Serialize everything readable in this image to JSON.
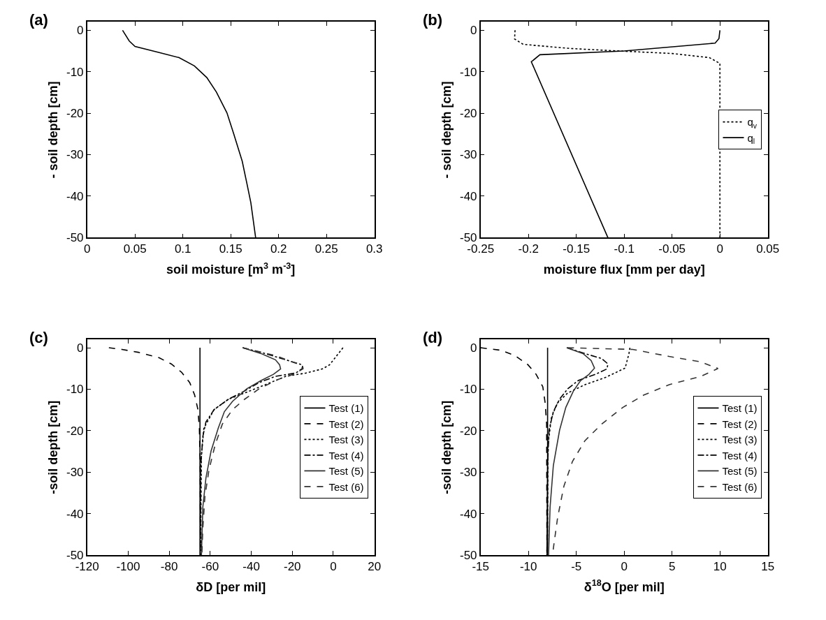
{
  "chart_data": [
    {
      "type": "line",
      "title": "(a)",
      "xlabel": "soil moisture [m$^{3}$ m$^{-3}$]",
      "ylabel": "- soil depth [cm]",
      "xlim": [
        0,
        0.3
      ],
      "xticks": [
        0,
        0.05,
        0.1,
        0.15,
        0.2,
        0.25,
        0.3
      ],
      "ylim": [
        -50,
        2
      ],
      "yticks": [
        -50,
        -40,
        -30,
        -20,
        -10,
        0
      ],
      "legend": false,
      "marker": "none",
      "series": [
        {
          "color": "#000000",
          "line_style": "solid",
          "x": [
            0.037,
            0.044,
            0.05,
            0.076,
            0.096,
            0.112,
            0.125,
            0.135,
            0.146,
            0.153,
            0.162,
            0.167,
            0.171,
            0.176
          ],
          "values": [
            0,
            -2.6,
            -3.9,
            -5.4,
            -6.6,
            -8.6,
            -11.4,
            -14.9,
            -19.9,
            -24.9,
            -31.6,
            -37.1,
            -41.6,
            -50
          ]
        }
      ]
    },
    {
      "type": "line",
      "title": "(b)",
      "xlabel": "moisture flux [mm per day]",
      "ylabel": "- soil depth [cm]",
      "xlim": [
        -0.25,
        0.05
      ],
      "xticks": [
        -0.25,
        -0.2,
        -0.15,
        -0.1,
        -0.05,
        0,
        0.05
      ],
      "ylim": [
        -50,
        2
      ],
      "yticks": [
        -50,
        -40,
        -30,
        -20,
        -10,
        0
      ],
      "legend": "right",
      "marker": "none",
      "series": [
        {
          "name": "q$_{v}$",
          "color": "#000000",
          "line_style": "dotted",
          "x": [
            -0.214,
            -0.2145,
            -0.2055,
            -0.156,
            -0.114,
            -0.05,
            -0.011,
            0,
            0
          ],
          "values": [
            0,
            -2.1,
            -3.4,
            -4.4,
            -4.9,
            -5.6,
            -6.6,
            -8,
            -50
          ]
        },
        {
          "name": "q$_{l}$",
          "color": "#000000",
          "line_style": "solid",
          "x": [
            0,
            -0.001,
            -0.005,
            -0.1,
            -0.188,
            -0.197,
            -0.117
          ],
          "values": [
            0,
            -2,
            -3.1,
            -5,
            -5.9,
            -7.6,
            -50
          ]
        }
      ]
    },
    {
      "type": "line",
      "title": "(c)",
      "xlabel": "δD [per mil]",
      "ylabel": "-soil depth [cm]",
      "xlim": [
        -120,
        20
      ],
      "xticks": [
        -120,
        -100,
        -80,
        -60,
        -40,
        -20,
        0,
        20
      ],
      "ylim": [
        -50,
        2
      ],
      "yticks": [
        -50,
        -40,
        -30,
        -20,
        -10,
        0
      ],
      "legend": "right",
      "marker": "none",
      "series": [
        {
          "name": "Test (1)",
          "color": "#000000",
          "line_style": "solid",
          "x": [
            -65,
            -65
          ],
          "values": [
            0,
            -50
          ]
        },
        {
          "name": "Test (2)",
          "color": "#000000",
          "line_style": "dashed",
          "x": [
            -109.4,
            -103,
            -95,
            -85,
            -79,
            -74,
            -70,
            -67.6,
            -66,
            -65.3,
            -64.9,
            -64.8
          ],
          "values": [
            0,
            -0.4,
            -1.1,
            -2.4,
            -3.9,
            -5.9,
            -8.4,
            -11.4,
            -14.9,
            -19.4,
            -28.4,
            -50
          ]
        },
        {
          "name": "Test (3)",
          "color": "#000000",
          "line_style": "dotted",
          "x": [
            4.7,
            1.7,
            -1.8,
            -5.3,
            -13.3,
            -23.2,
            -33.2,
            -43.2,
            -51.1,
            -58.1,
            -63.1,
            -64.3,
            -64.7
          ],
          "values": [
            0,
            -1.9,
            -4.1,
            -5.1,
            -6.1,
            -6.9,
            -8.9,
            -10.9,
            -12.4,
            -14.9,
            -19.4,
            -25.9,
            -50
          ]
        },
        {
          "name": "Test (4)",
          "color": "#000000",
          "line_style": "dashdot",
          "x": [
            -44.2,
            -33.2,
            -23.2,
            -15.3,
            -14.8,
            -18.3,
            -28.2,
            -36.2,
            -43.2,
            -51.1,
            -58.1,
            -62.1,
            -63.6,
            -64.6,
            -64.8
          ],
          "values": [
            0,
            -1.4,
            -2.9,
            -4.1,
            -4.9,
            -6.1,
            -6.9,
            -8.4,
            -10.4,
            -12.4,
            -14.9,
            -17.9,
            -21.4,
            -28.4,
            -50
          ]
        },
        {
          "name": "Test (5)",
          "color": "#333333",
          "line_style": "solid",
          "x": [
            -44.2,
            -35.2,
            -28.2,
            -26.2,
            -25.7,
            -29.2,
            -35.2,
            -42.2,
            -49.1,
            -53.1,
            -56.1,
            -59.6,
            -62.1,
            -63.6,
            -64.3
          ],
          "values": [
            0,
            -1.4,
            -2.9,
            -4.1,
            -5.1,
            -6.4,
            -7.9,
            -9.9,
            -12.9,
            -15.4,
            -19.4,
            -24.9,
            -31.4,
            -38.4,
            -50
          ]
        },
        {
          "name": "Test (6)",
          "color": "#333333",
          "line_style": "dashed",
          "x": [
            -44.2,
            -28.2,
            -16.3,
            -14.8,
            -19.3,
            -26.7,
            -36.2,
            -43.2,
            -49.1,
            -54.1,
            -57.6,
            -60.6,
            -62.6,
            -63.6,
            -64.1
          ],
          "values": [
            0,
            -1.9,
            -4.1,
            -5.1,
            -6.4,
            -7.6,
            -9.9,
            -12.4,
            -14.9,
            -18.4,
            -23.4,
            -29.4,
            -35.9,
            -43.4,
            -50
          ]
        }
      ]
    },
    {
      "type": "line",
      "title": "(d)",
      "xlabel": "δ$^{18}$O [per mil]",
      "ylabel": "-soil depth [cm]",
      "xlim": [
        -15,
        15
      ],
      "xticks": [
        -15,
        -10,
        -5,
        0,
        5,
        10,
        15
      ],
      "ylim": [
        -50,
        2
      ],
      "yticks": [
        -50,
        -40,
        -30,
        -20,
        -10,
        0
      ],
      "legend": "right",
      "marker": "none",
      "series": [
        {
          "name": "Test (1)",
          "color": "#000000",
          "line_style": "solid",
          "x": [
            -8,
            -8
          ],
          "values": [
            0,
            -50
          ]
        },
        {
          "name": "Test (2)",
          "color": "#000000",
          "line_style": "dashed",
          "x": [
            -15,
            -12.9,
            -11.4,
            -10.05,
            -9.2,
            -8.5,
            -8.25,
            -8.1,
            -8.07
          ],
          "values": [
            0,
            -0.6,
            -1.9,
            -4.1,
            -6.4,
            -9.4,
            -13.4,
            -18.4,
            -50
          ]
        },
        {
          "name": "Test (3)",
          "color": "#000000",
          "line_style": "dotted",
          "x": [
            0.6,
            0.5,
            0.1,
            -1.9,
            -4.1,
            -5.9,
            -7,
            -7.6,
            -7.96,
            -8.03
          ],
          "values": [
            0,
            -1.4,
            -4.9,
            -7.1,
            -8.9,
            -10.9,
            -13.4,
            -16.9,
            -23.4,
            -50
          ]
        },
        {
          "name": "Test (4)",
          "color": "#000000",
          "line_style": "dashdot",
          "x": [
            -6,
            -4.1,
            -2.35,
            -1.7,
            -1.8,
            -3,
            -4.8,
            -5.9,
            -6.75,
            -7.4,
            -7.85,
            -8,
            -8.07
          ],
          "values": [
            0,
            -1.4,
            -2.6,
            -3.9,
            -5.1,
            -6.4,
            -7.9,
            -9.9,
            -12.4,
            -15.4,
            -19.9,
            -28.4,
            -50
          ]
        },
        {
          "name": "Test (5)",
          "color": "#333333",
          "line_style": "solid",
          "x": [
            -6,
            -4.3,
            -3.45,
            -3.1,
            -3.67,
            -4.55,
            -5.3,
            -6.1,
            -6.75,
            -7.4,
            -7.74,
            -7.9
          ],
          "values": [
            0,
            -1.4,
            -3.1,
            -4.9,
            -6.4,
            -7.9,
            -10.4,
            -14.4,
            -19.9,
            -28.4,
            -38.4,
            -50
          ]
        },
        {
          "name": "Test (6)",
          "color": "#333333",
          "line_style": "dashed",
          "x": [
            -5.9,
            0.9,
            4.7,
            8,
            9.8,
            8,
            4.7,
            2.05,
            -0.15,
            -2.35,
            -4.1,
            -5.4,
            -6.3,
            -6.95,
            -7.4,
            -7.45
          ],
          "values": [
            0,
            -0.4,
            -2.1,
            -3.4,
            -5,
            -6.9,
            -8.9,
            -11.4,
            -14.4,
            -18.4,
            -22.4,
            -27.4,
            -33.4,
            -40.9,
            -48.4,
            -50
          ]
        }
      ]
    }
  ]
}
